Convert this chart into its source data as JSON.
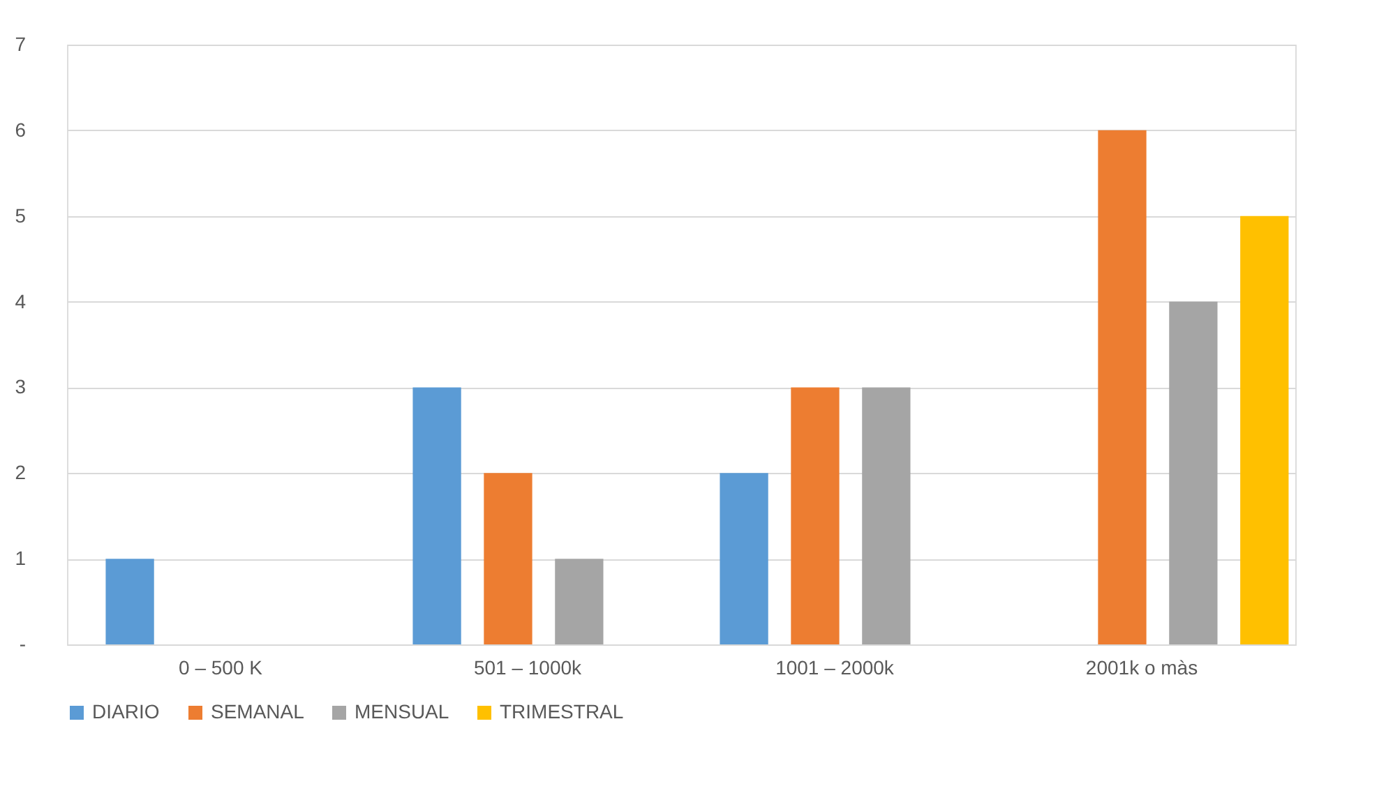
{
  "chart_data": {
    "type": "bar",
    "categories": [
      "0 –  500 K",
      "501 – 1000k",
      "1001 – 2000k",
      "2001k o màs"
    ],
    "series": [
      {
        "name": "DIARIO",
        "color": "#5b9bd5",
        "values": [
          1,
          3,
          2,
          0
        ]
      },
      {
        "name": "SEMANAL",
        "color": "#ed7d31",
        "values": [
          0,
          2,
          3,
          6
        ]
      },
      {
        "name": "MENSUAL",
        "color": "#a5a5a5",
        "values": [
          0,
          1,
          3,
          4
        ]
      },
      {
        "name": "TRIMESTRAL",
        "color": "#ffc000",
        "values": [
          0,
          0,
          0,
          5
        ]
      }
    ],
    "ylim": [
      0,
      7
    ],
    "yticks": [
      {
        "value": 0,
        "label": "-"
      },
      1,
      2,
      3,
      4,
      5,
      6,
      7
    ],
    "grid": "y",
    "legend": "bottom"
  }
}
